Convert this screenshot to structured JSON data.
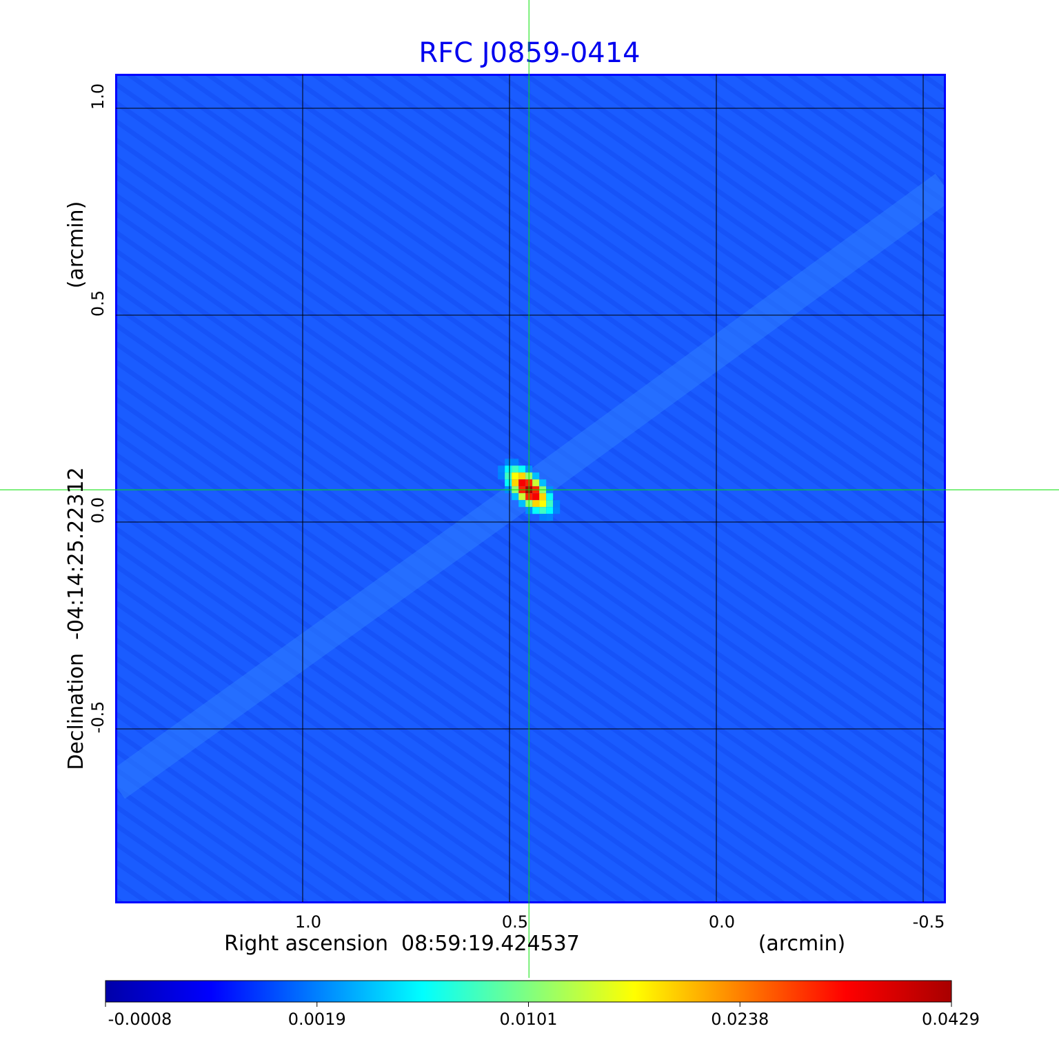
{
  "chart_data": {
    "type": "heatmap",
    "title": "RFC J0859-0414",
    "xlabel": "Right ascension  08:59:19.424537",
    "xunit": "(arcmin)",
    "ylabel": "Declination  -04:14:25.22312",
    "yunit": "(arcmin)",
    "xlim": [
      1.45,
      -0.55
    ],
    "ylim": [
      -0.92,
      1.08
    ],
    "xticks": [
      1.0,
      0.5,
      0.0,
      -0.5
    ],
    "xtick_labels": [
      "1.0",
      "0.5",
      "0.0",
      "-0.5"
    ],
    "yticks": [
      1.0,
      0.5,
      0.0,
      -0.5
    ],
    "ytick_labels": [
      "1.0",
      "0.5",
      "0.0",
      "-0.5"
    ],
    "grid": true,
    "crosshair": {
      "x": 0.453,
      "y": 0.078,
      "color": "#00e000"
    },
    "source": {
      "x": 0.453,
      "y": 0.078,
      "peak": 0.0429
    },
    "background_level": 0.0005,
    "colorbar": {
      "placement": "bottom",
      "tick_labels": [
        "-0.0008",
        "0.0019",
        "0.0101",
        "0.0238",
        "0.0429"
      ],
      "colors": [
        "#0000a8",
        "#0000ff",
        "#0080ff",
        "#00ffff",
        "#80ff80",
        "#ffff00",
        "#ff8000",
        "#ff0000",
        "#a80000"
      ]
    },
    "colors": {
      "title": "#0000ee",
      "background_map": "#1a5cff"
    }
  }
}
